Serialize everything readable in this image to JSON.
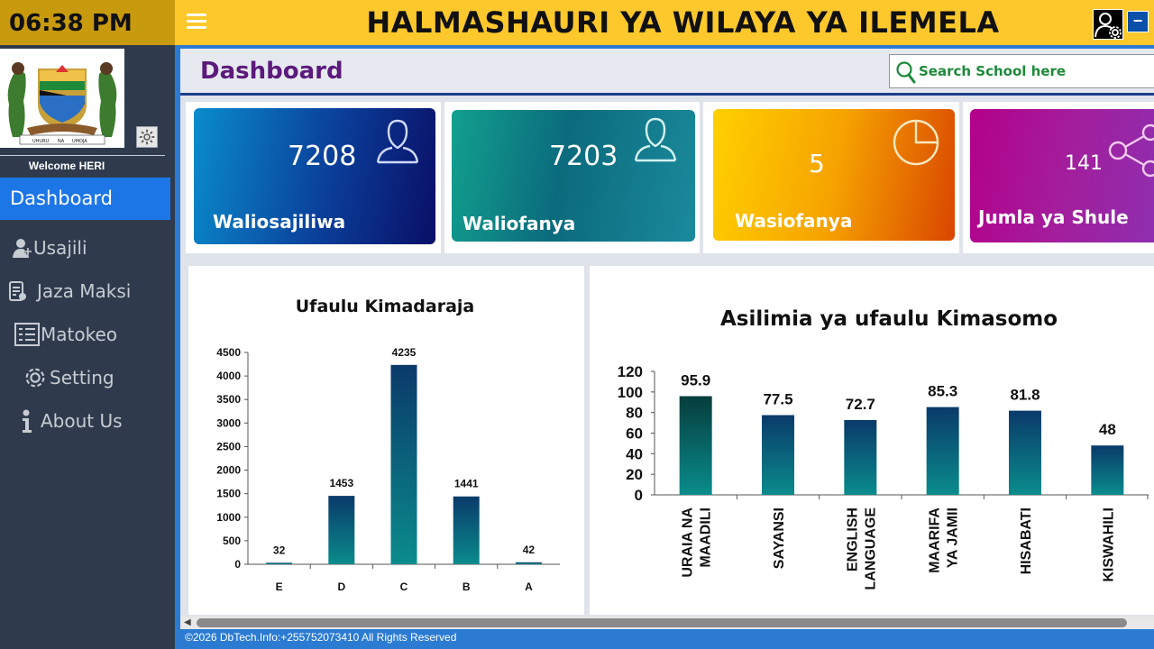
{
  "clock": "06:38 PM",
  "app_title": "HALMASHAURI YA WILAYA YA ILEMELA",
  "welcome": "Welcome HERI",
  "emblem": {
    "motto_left": "UHURU",
    "motto_mid": "NA",
    "motto_right": "UMOJA"
  },
  "nav": [
    {
      "label": "Dashboard",
      "icon": "dashboard",
      "active": true
    },
    {
      "label": "Usajili",
      "icon": "user-add-icon"
    },
    {
      "label": "Jaza Maksi",
      "icon": "form-edit-icon"
    },
    {
      "label": "Matokeo",
      "icon": "checklist-icon"
    },
    {
      "label": "Setting",
      "icon": "gear-icon"
    },
    {
      "label": "About Us",
      "icon": "info-icon"
    }
  ],
  "page_title": "Dashboard",
  "search": {
    "placeholder": "Search School here"
  },
  "cards": [
    {
      "value": "7208",
      "label": "Waliosajiliwa",
      "icon": "user-icon"
    },
    {
      "value": "7203",
      "label": "Waliofanya",
      "icon": "user-icon"
    },
    {
      "value": "5",
      "label": "Wasiofanya",
      "icon": "pie-icon"
    },
    {
      "value": "141",
      "label": "Jumla ya Shule",
      "icon": "share-icon"
    }
  ],
  "colors": {
    "topbar": "#fdc82c",
    "sidebar": "#2f3b4d",
    "accent_blue": "#2b7bd3",
    "active_nav": "#1d76e6",
    "title_purple": "#5b1a7c"
  },
  "chart_data": [
    {
      "type": "bar",
      "title": "Ufaulu Kimadaraja",
      "categories": [
        "E",
        "D",
        "C",
        "B",
        "A"
      ],
      "values": [
        32,
        1453,
        4235,
        1441,
        42
      ],
      "ylim": [
        0,
        4500
      ],
      "yticks": [
        0,
        500,
        1000,
        1500,
        2000,
        2500,
        3000,
        3500,
        4000,
        4500
      ],
      "grid": false,
      "xlabel": "",
      "ylabel": ""
    },
    {
      "type": "bar",
      "title": "Asilimia ya ufaulu Kimasomo",
      "categories": [
        [
          "URAIA NA",
          "MAADILI"
        ],
        [
          "SAYANSI"
        ],
        [
          "ENGLISH",
          "LANGUAGE"
        ],
        [
          "MAARIFA",
          "YA JAMII"
        ],
        [
          "HISABATI"
        ],
        [
          "KISWAHILI"
        ]
      ],
      "values": [
        95.9,
        77.5,
        72.7,
        85.3,
        81.8,
        48
      ],
      "ylim": [
        0,
        120
      ],
      "yticks": [
        0,
        20,
        40,
        60,
        80,
        100,
        120
      ],
      "grid": false,
      "xlabel": "",
      "ylabel": ""
    }
  ],
  "footer": "©2026 DbTech.Info:+255752073410 All Rights Reserved"
}
